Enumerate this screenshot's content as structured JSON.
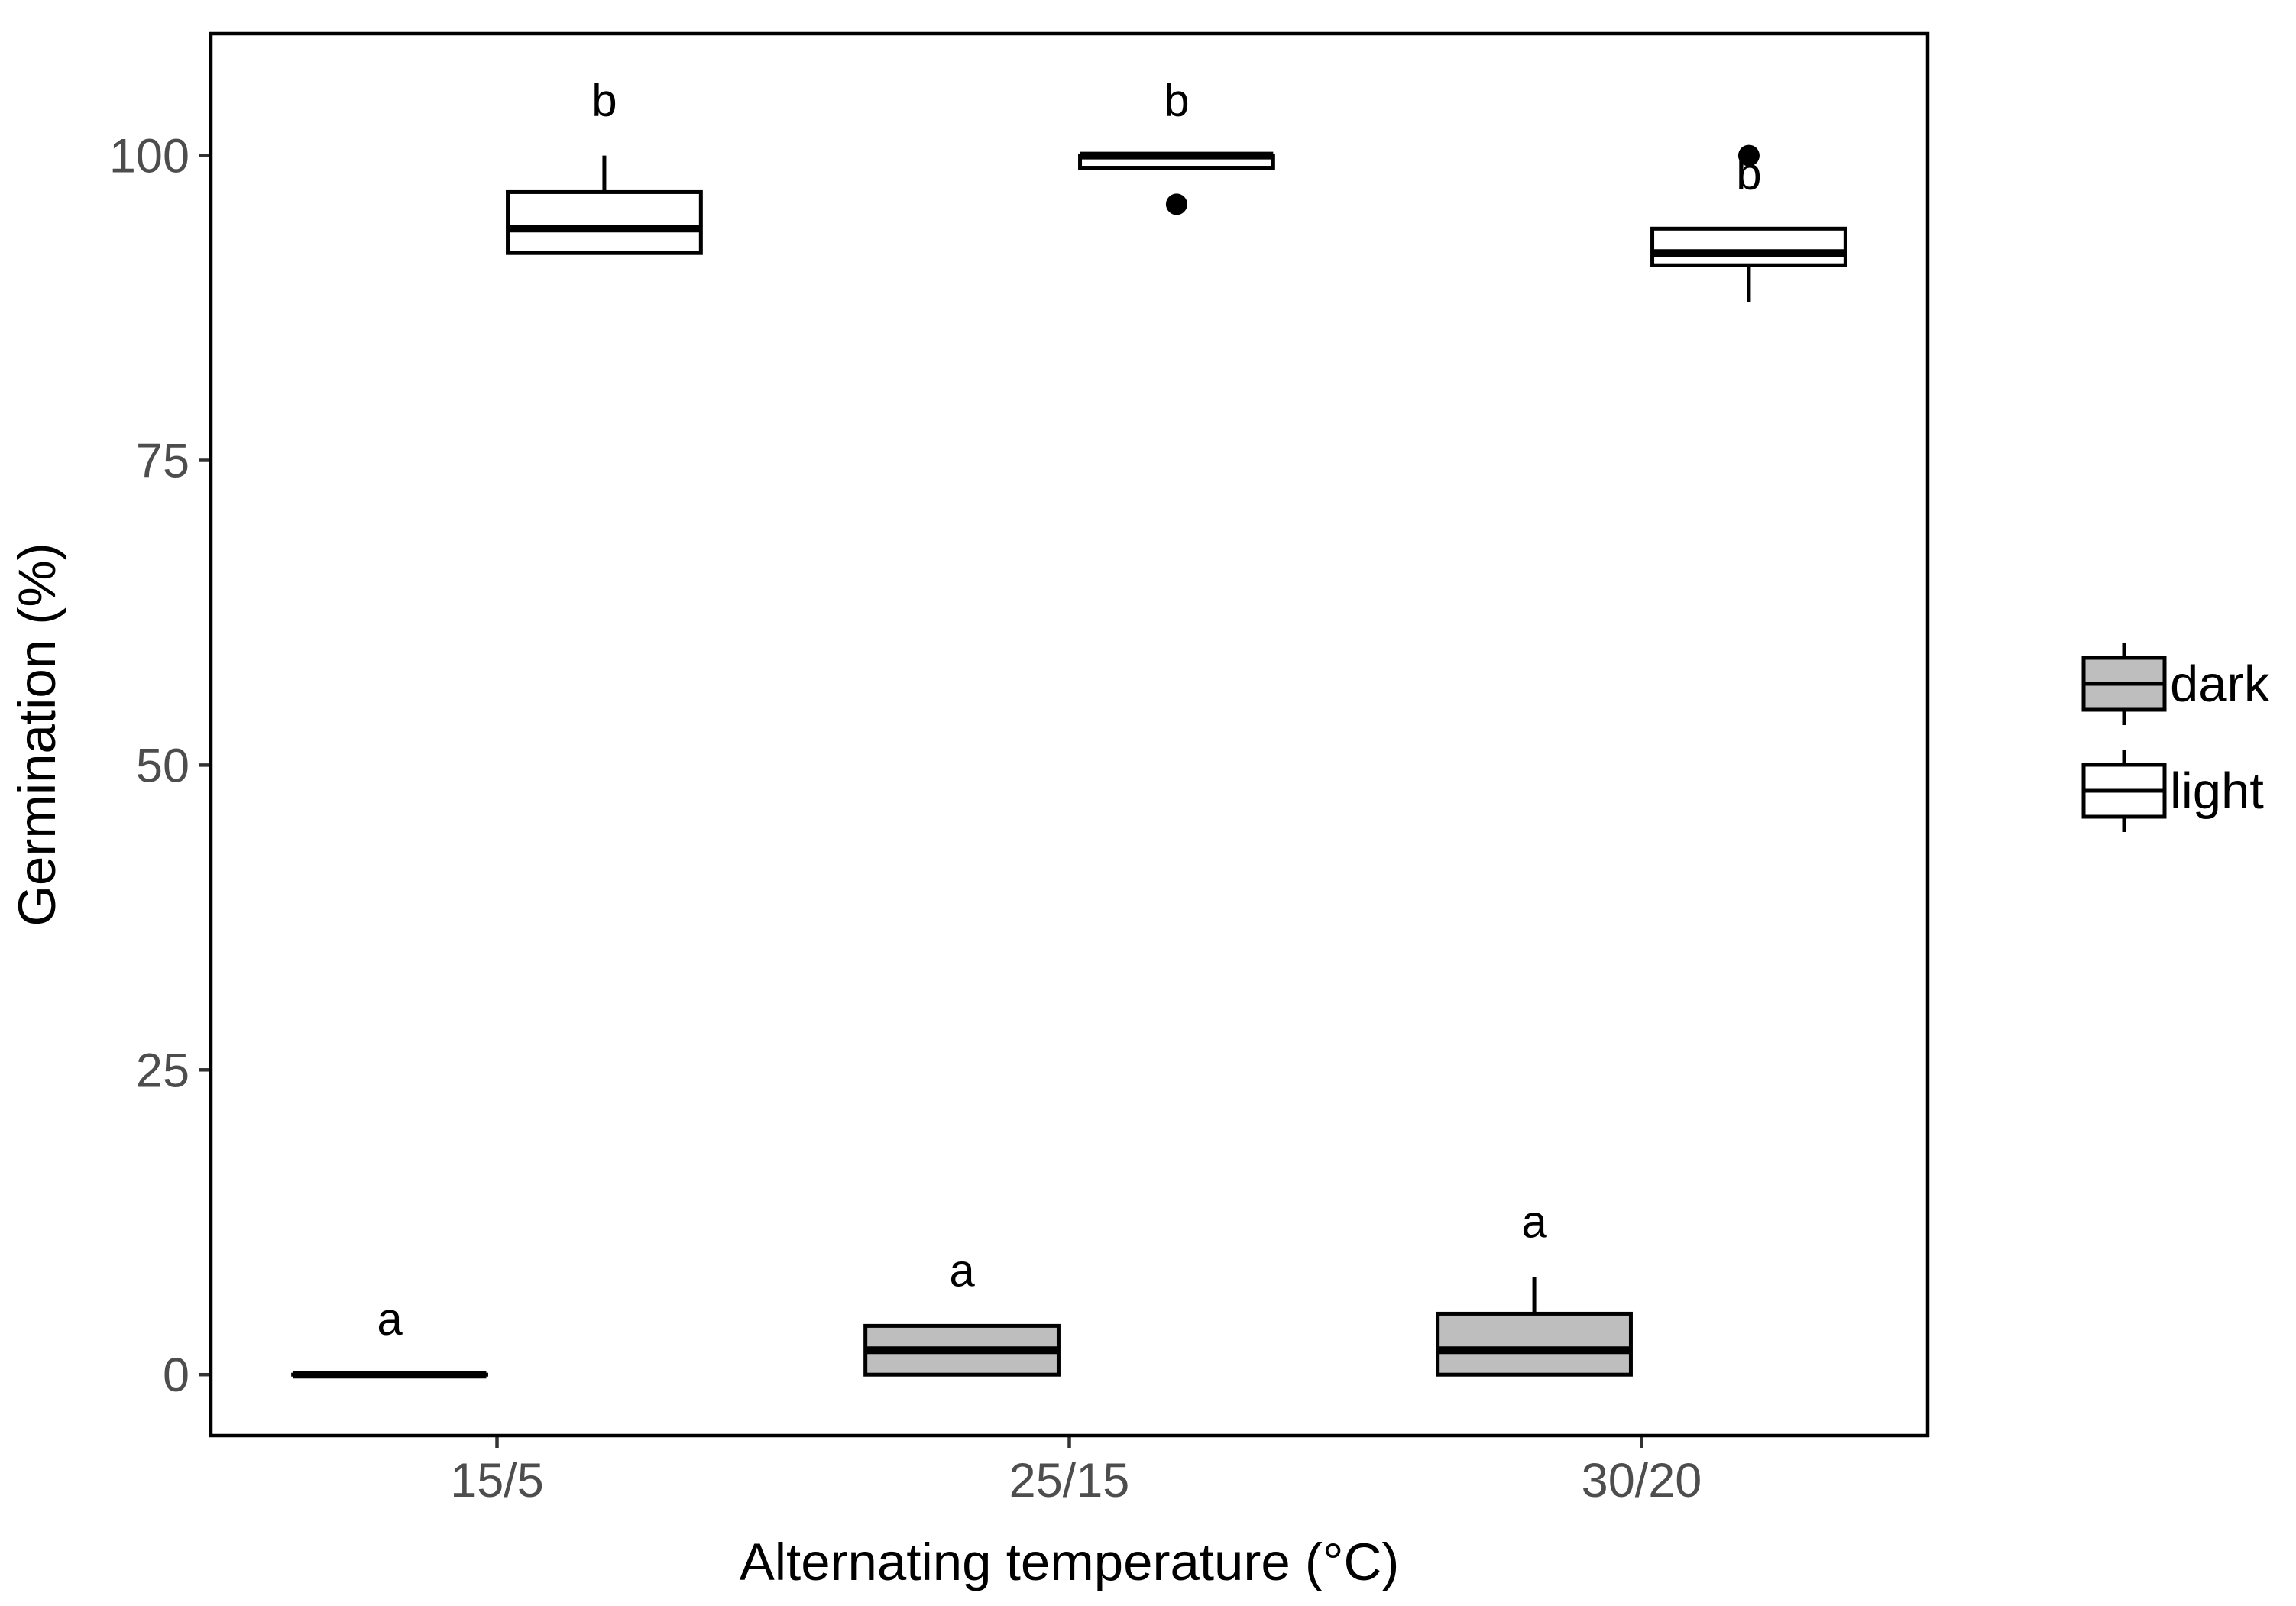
{
  "chart_data": {
    "type": "box",
    "xlabel": "Alternating temperature (°C)",
    "ylabel": "Germination (%)",
    "categories": [
      "15/5",
      "25/15",
      "30/20"
    ],
    "ylim": [
      -5,
      110
    ],
    "yticks": [
      0,
      25,
      50,
      75,
      100
    ],
    "grid": false,
    "legend_position": "right",
    "series": [
      {
        "name": "dark",
        "fill": "#bebebe",
        "boxes": [
          {
            "category": "15/5",
            "min": 0,
            "q1": 0,
            "median": 0,
            "q3": 0,
            "max": 0,
            "outliers": [],
            "letter": "a"
          },
          {
            "category": "25/15",
            "min": 0,
            "q1": 0,
            "median": 2,
            "q3": 4,
            "max": 4,
            "outliers": [],
            "letter": "a"
          },
          {
            "category": "30/20",
            "min": 0,
            "q1": 0,
            "median": 2,
            "q3": 5,
            "max": 8,
            "outliers": [],
            "letter": "a"
          }
        ]
      },
      {
        "name": "light",
        "fill": "#ffffff",
        "boxes": [
          {
            "category": "15/5",
            "min": 92,
            "q1": 92,
            "median": 94,
            "q3": 97,
            "max": 100,
            "outliers": [],
            "letter": "b"
          },
          {
            "category": "25/15",
            "min": 99,
            "q1": 99,
            "median": 100,
            "q3": 100,
            "max": 100,
            "outliers": [
              96
            ],
            "letter": "b"
          },
          {
            "category": "30/20",
            "min": 88,
            "q1": 91,
            "median": 92,
            "q3": 94,
            "max": 94,
            "outliers": [
              100
            ],
            "letter": "b"
          }
        ]
      }
    ]
  }
}
